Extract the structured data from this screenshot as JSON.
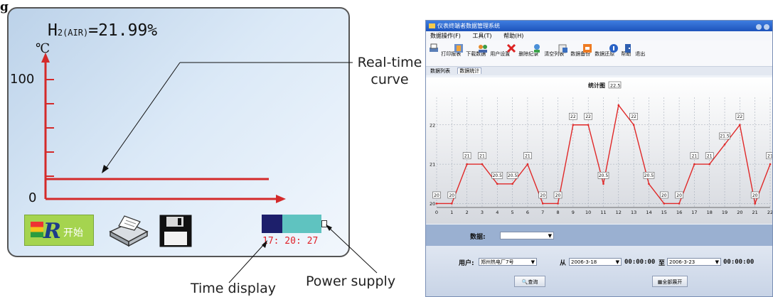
{
  "figure_label": "g",
  "device": {
    "reading_main": "H",
    "reading_sub": "2(AIR)",
    "reading_value": "=21.99%",
    "unit": "℃",
    "tick_top": "100",
    "tick_bottom": "0",
    "start_label": "开始",
    "clock": "17: 20: 27",
    "battery_level": 0.35
  },
  "annotations": {
    "curve": "Real-time\ncurve",
    "time": "Time display",
    "power": "Power supply"
  },
  "window": {
    "title": "仪表终端者数据管理系统",
    "menus": [
      "数据操作(F)",
      "工具(T)",
      "帮助(H)"
    ],
    "toolbar": [
      "打印报表",
      "下载数据",
      "用户设置",
      "删除纪录",
      "清空列表",
      "数据备份",
      "数据还原",
      "帮助",
      "退出"
    ],
    "tabs": [
      "数据列表",
      "数据统计"
    ],
    "chart_title": "统计图",
    "chart_title_value": "22.5",
    "form": {
      "data_label": "数据:",
      "data_value": "",
      "user_label": "用户:",
      "user_value": "郑州热电厂7号",
      "from_label": "从",
      "from_date": "2006-3-18",
      "from_time": "00:00:00",
      "to_label": "至",
      "to_date": "2006-3-23",
      "to_time": "00:00:00",
      "query_label": "查询",
      "expand_label": "全部展开"
    }
  },
  "chart_data": {
    "type": "line",
    "x": [
      0,
      1,
      2,
      3,
      4,
      5,
      6,
      7,
      8,
      9,
      10,
      11,
      12,
      13,
      14,
      15,
      16,
      17,
      18,
      19,
      20,
      21,
      22
    ],
    "y": [
      20,
      20,
      21,
      21,
      20.5,
      20.5,
      21,
      20,
      20,
      22,
      22,
      20.5,
      22.5,
      22,
      20.5,
      20,
      20,
      21,
      21,
      21.5,
      22,
      20,
      21
    ],
    "labels": [
      "20",
      "20",
      "21",
      "21",
      "20.5",
      "20.5",
      "21",
      "20",
      "20",
      "22",
      "22",
      "20.5",
      "",
      "22",
      "20.5",
      "20",
      "20",
      "21",
      "21",
      "21.5",
      "22",
      "20",
      "21"
    ],
    "x_ticks": [
      "0",
      "1",
      "2",
      "3",
      "4",
      "5",
      "6",
      "7",
      "8",
      "9",
      "10",
      "11",
      "12",
      "13",
      "14",
      "15",
      "16",
      "17",
      "18",
      "19",
      "20",
      "21",
      "22"
    ],
    "y_ticks": [
      20,
      21,
      22
    ],
    "ylim": [
      19.9,
      22.7
    ],
    "grid": true,
    "color": "#e02828"
  }
}
